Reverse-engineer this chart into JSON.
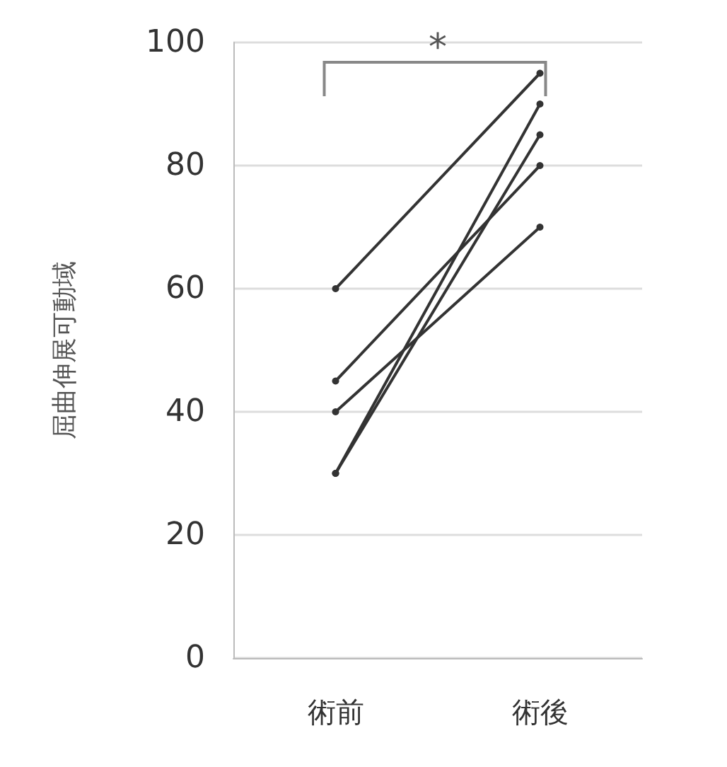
{
  "chart_data": {
    "type": "line",
    "ylabel": "屈曲伸展可動域",
    "categories": [
      "術前",
      "術後"
    ],
    "series": [
      {
        "color": "#333333",
        "values": [
          60,
          95
        ]
      },
      {
        "color": "#333333",
        "values": [
          45,
          80
        ]
      },
      {
        "color": "#333333",
        "values": [
          40,
          70
        ]
      },
      {
        "color": "#333333",
        "values": [
          30,
          90
        ]
      },
      {
        "color": "#333333",
        "values": [
          30,
          85
        ]
      }
    ],
    "ylim": [
      0,
      100
    ],
    "yticks": [
      0,
      20,
      40,
      60,
      80,
      100
    ],
    "grid": "y",
    "marker": "circle",
    "line_style": "solid",
    "annotations": [
      "*"
    ]
  }
}
